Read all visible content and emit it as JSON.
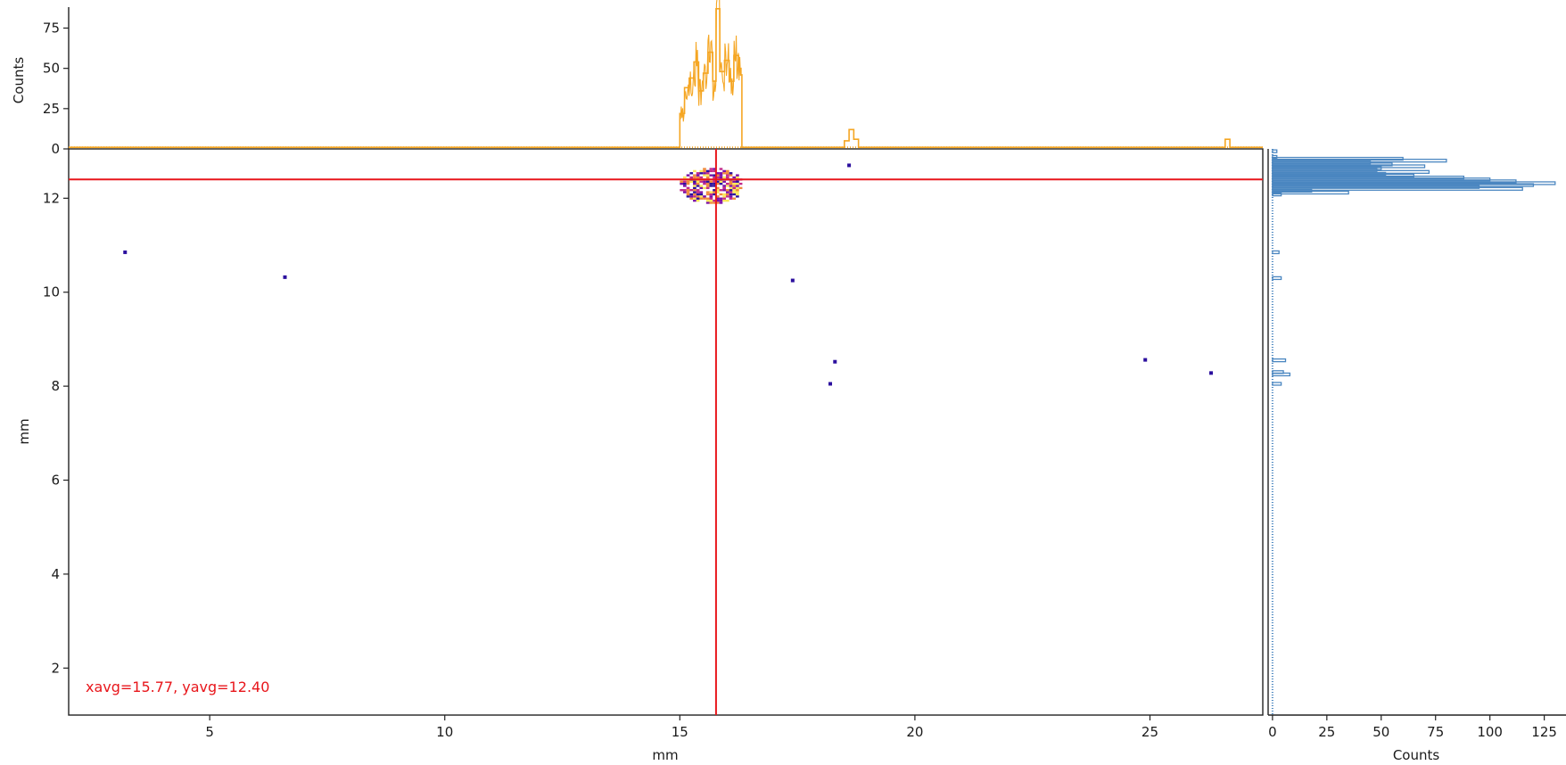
{
  "chart_data": [
    {
      "type": "heatmap",
      "panel": "main",
      "xlabel": "mm",
      "ylabel": "mm",
      "xlim": [
        2,
        27.4
      ],
      "ylim": [
        1,
        13.05
      ],
      "xticks": [
        5,
        10,
        15,
        20,
        25
      ],
      "yticks": [
        2,
        4,
        6,
        8,
        10,
        12
      ],
      "grid": false,
      "crosshair": {
        "x": 15.77,
        "y": 12.4,
        "color": "#e8161b"
      },
      "annotation": {
        "text": "xavg=15.77, yavg=12.40",
        "color": "#e8161b"
      },
      "cluster": {
        "x_range": [
          15.0,
          16.3
        ],
        "y_range": [
          11.88,
          12.62
        ],
        "colormap": [
          "#2b0f9e",
          "#7a0fa8",
          "#c22a8a",
          "#f08a3c",
          "#f9e85a"
        ]
      },
      "points": [
        {
          "x": 3.2,
          "y": 10.85
        },
        {
          "x": 6.6,
          "y": 10.32
        },
        {
          "x": 17.4,
          "y": 10.25
        },
        {
          "x": 18.3,
          "y": 8.52
        },
        {
          "x": 18.2,
          "y": 8.05
        },
        {
          "x": 24.9,
          "y": 8.56
        },
        {
          "x": 26.3,
          "y": 8.28
        },
        {
          "x": 18.6,
          "y": 12.7
        }
      ]
    },
    {
      "type": "line",
      "panel": "top-histogram",
      "ylabel": "Counts",
      "xlim": [
        2,
        27.4
      ],
      "ylim": [
        0,
        88
      ],
      "yticks": [
        0,
        25,
        50,
        75
      ],
      "color": "#f5a623",
      "x": [
        2.0,
        14.94,
        15.0,
        15.1,
        15.2,
        15.3,
        15.4,
        15.5,
        15.6,
        15.7,
        15.77,
        15.85,
        15.95,
        16.05,
        16.15,
        16.25,
        16.3,
        16.32,
        18.4,
        18.5,
        18.6,
        18.7,
        18.8,
        26.5,
        26.6,
        26.7,
        27.4
      ],
      "y": [
        1,
        1,
        22,
        38,
        44,
        54,
        36,
        47,
        60,
        42,
        87,
        48,
        55,
        42,
        58,
        50,
        46,
        1,
        1,
        5,
        12,
        6,
        1,
        1,
        6,
        1,
        1
      ]
    },
    {
      "type": "bar",
      "orientation": "horizontal",
      "panel": "right-histogram",
      "xlabel": "Counts",
      "xlim": [
        -2,
        135
      ],
      "xticks": [
        0,
        25,
        50,
        75,
        100,
        125
      ],
      "ylim": [
        1,
        13.05
      ],
      "color": "#4a86c0",
      "y": [
        13.0,
        12.88,
        12.84,
        12.8,
        12.76,
        12.72,
        12.68,
        12.64,
        12.6,
        12.56,
        12.52,
        12.48,
        12.44,
        12.4,
        12.36,
        12.32,
        12.28,
        12.24,
        12.2,
        12.16,
        12.12,
        12.08,
        10.85,
        10.3,
        8.55,
        8.3,
        8.25,
        8.05
      ],
      "values": [
        2,
        2,
        60,
        80,
        45,
        55,
        70,
        50,
        48,
        72,
        52,
        65,
        88,
        100,
        112,
        130,
        120,
        95,
        115,
        18,
        35,
        4,
        3,
        4,
        6,
        5,
        8,
        4
      ]
    }
  ]
}
